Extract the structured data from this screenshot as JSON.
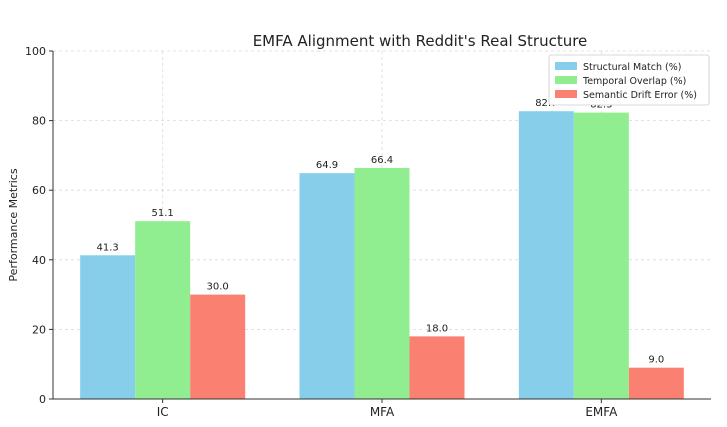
{
  "chart_data": {
    "type": "bar",
    "title": "EMFA Alignment with Reddit's Real Structure",
    "xlabel": "",
    "ylabel": "Performance Metrics",
    "categories": [
      "IC",
      "MFA",
      "EMFA"
    ],
    "ylim": [
      0,
      100
    ],
    "yticks": [
      0,
      20,
      40,
      60,
      80,
      100
    ],
    "grid": true,
    "legend_position": "top-right",
    "series": [
      {
        "name": "Structural Match (%)",
        "color": "#87ceeb",
        "values": [
          41.3,
          64.9,
          82.7
        ]
      },
      {
        "name": "Temporal Overlap (%)",
        "color": "#90ee90",
        "values": [
          51.1,
          66.4,
          82.3
        ]
      },
      {
        "name": "Semantic Drift Error (%)",
        "color": "#fa8072",
        "values": [
          30.0,
          18.0,
          9.0
        ]
      }
    ]
  }
}
